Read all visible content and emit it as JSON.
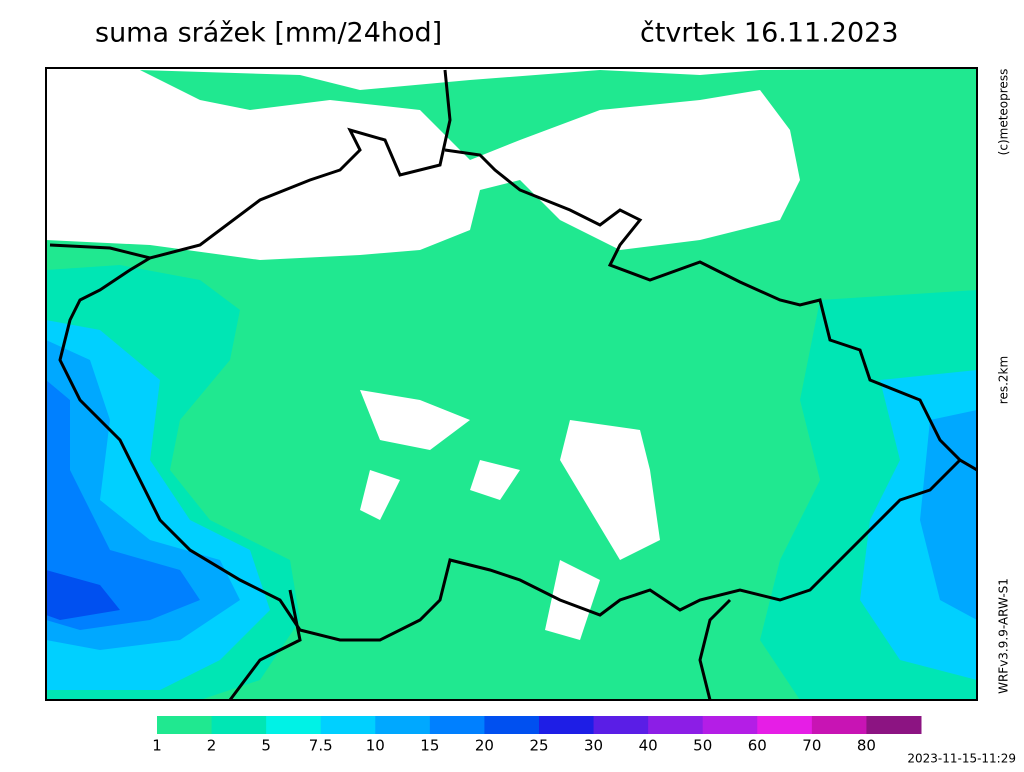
{
  "header": {
    "title": "suma srážek [mm/24hod]",
    "date": "čtvrtek 16.11.2023"
  },
  "side_labels": {
    "copyright": "(c)meteopress",
    "resolution": "res.2km",
    "model": "WRFv3.9.9-ARW-S1"
  },
  "colorbar": {
    "labels": [
      "1",
      "2",
      "5",
      "7.5",
      "10",
      "15",
      "20",
      "25",
      "30",
      "40",
      "50",
      "60",
      "70",
      "80"
    ],
    "colors": [
      "#20e890",
      "#00e6b4",
      "#00f2e6",
      "#00d0ff",
      "#00a8ff",
      "#0080ff",
      "#0050f0",
      "#1e1ee6",
      "#5a1ee6",
      "#8c1ee6",
      "#b41ee6",
      "#e61ee6",
      "#c814b4",
      "#8c1482"
    ]
  },
  "timestamp": "2023-11-15-11:29"
}
